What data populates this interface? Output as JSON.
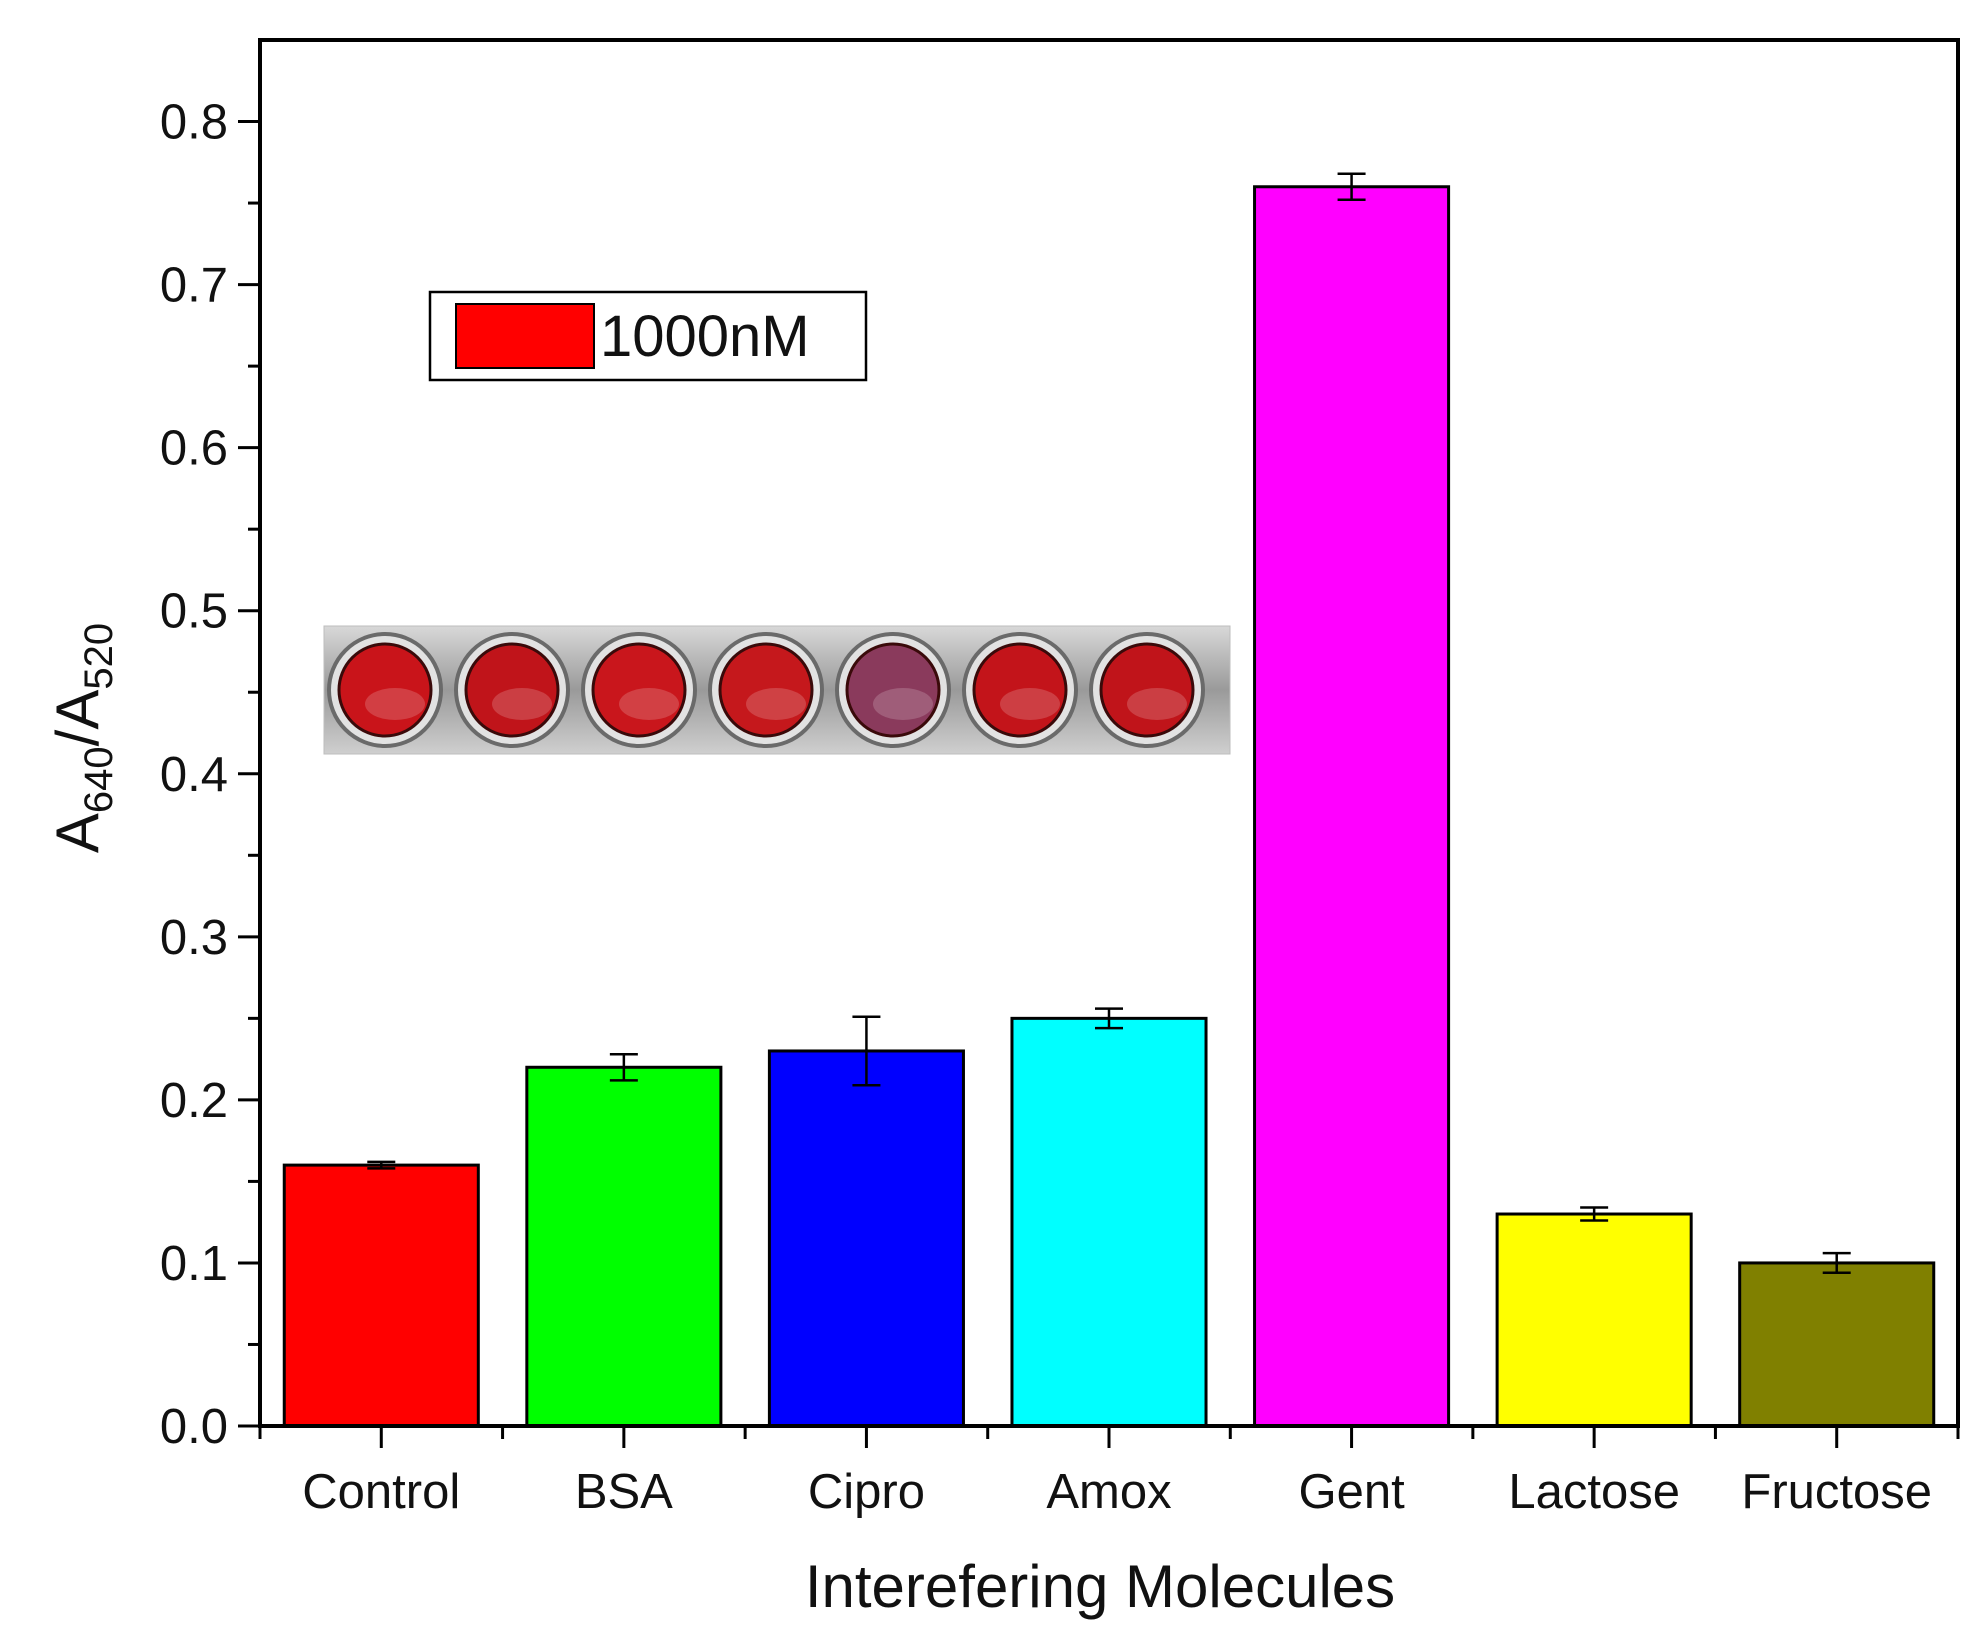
{
  "chart_data": {
    "type": "bar",
    "title": "",
    "xlabel": "Interefering Molecules",
    "ylabel": {
      "base": "A",
      "num_sub": "640",
      "sep": "/A",
      "den_sub": "520"
    },
    "ylim": [
      0,
      0.85
    ],
    "yticks": [
      "0.0",
      "0.1",
      "0.2",
      "0.3",
      "0.4",
      "0.5",
      "0.6",
      "0.7",
      "0.8"
    ],
    "categories": [
      "Control",
      "BSA",
      "Cipro",
      "Amox",
      "Gent",
      "Lactose",
      "Fructose"
    ],
    "series": [
      {
        "name": "1000nM",
        "values": [
          0.16,
          0.22,
          0.23,
          0.25,
          0.76,
          0.13,
          0.1
        ],
        "errors": [
          0.002,
          0.008,
          0.021,
          0.006,
          0.008,
          0.004,
          0.006
        ],
        "colors": [
          "#ff0000",
          "#00ff00",
          "#0000ff",
          "#00ffff",
          "#ff00ff",
          "#ffff00",
          "#808000"
        ]
      }
    ],
    "legend": {
      "label": "1000nM",
      "color": "#ff0000",
      "position": "top-left"
    },
    "inset": {
      "description": "photo-of-sample-wells",
      "wells": [
        "#c9141a",
        "#c0141a",
        "#c9161c",
        "#c5181c",
        "#8a3a5c",
        "#c3141a",
        "#c0141a"
      ]
    }
  }
}
